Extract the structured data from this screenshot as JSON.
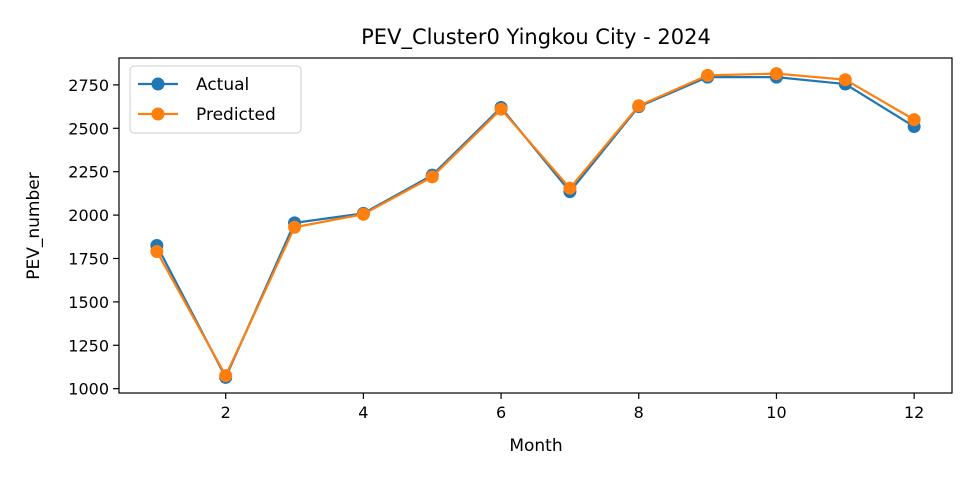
{
  "chart_data": {
    "type": "line",
    "title": "PEV_Cluster0 Yingkou City - 2024",
    "xlabel": "Month",
    "ylabel": "PEV_number",
    "x": [
      1,
      2,
      3,
      4,
      5,
      6,
      7,
      8,
      9,
      10,
      11,
      12
    ],
    "xlim": [
      0.45,
      12.55
    ],
    "ylim": [
      975,
      2905
    ],
    "x_ticks": [
      2,
      4,
      6,
      8,
      10,
      12
    ],
    "y_ticks": [
      1000,
      1250,
      1500,
      1750,
      2000,
      2250,
      2500,
      2750
    ],
    "grid": false,
    "legend_position": "upper left",
    "series": [
      {
        "name": "Actual",
        "color": "#1f77b4",
        "marker": "circle",
        "values": [
          1825,
          1065,
          1955,
          2010,
          2230,
          2620,
          2135,
          2625,
          2795,
          2795,
          2755,
          2510
        ]
      },
      {
        "name": "Predicted",
        "color": "#ff7f0e",
        "marker": "circle",
        "values": [
          1790,
          1075,
          1930,
          2005,
          2220,
          2610,
          2155,
          2630,
          2805,
          2815,
          2780,
          2550
        ]
      }
    ]
  }
}
